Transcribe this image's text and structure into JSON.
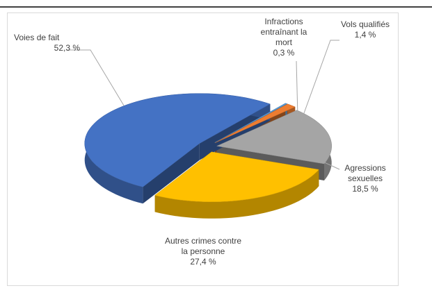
{
  "chart_data": {
    "type": "pie",
    "categories": [
      "Infractions entraînant la mort",
      "Vols qualifiés",
      "Agressions sexuelles",
      "Autres crimes contre la personne",
      "Voies de fait"
    ],
    "values": [
      0.3,
      1.4,
      18.5,
      27.4,
      52.3
    ],
    "value_labels": [
      "0,3 %",
      "1,4 %",
      "18,5 %",
      "27,4 %",
      "52,3 %"
    ],
    "colors": [
      "#5b9bd5",
      "#ed7d31",
      "#a5a5a5",
      "#ffc000",
      "#4472c4"
    ]
  }
}
